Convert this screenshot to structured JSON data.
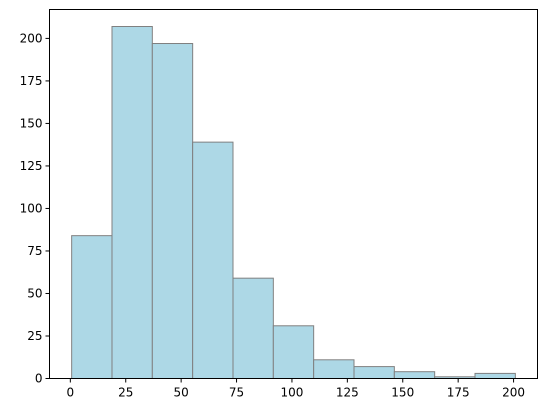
{
  "chart_data": {
    "type": "histogram",
    "title": "",
    "xlabel": "",
    "ylabel": "",
    "bins": [
      {
        "x0": 0.6,
        "x1": 18.8,
        "count": 84
      },
      {
        "x0": 18.8,
        "x1": 37.0,
        "count": 207
      },
      {
        "x0": 37.0,
        "x1": 55.2,
        "count": 197
      },
      {
        "x0": 55.2,
        "x1": 73.4,
        "count": 139
      },
      {
        "x0": 73.4,
        "x1": 91.6,
        "count": 59
      },
      {
        "x0": 91.6,
        "x1": 109.8,
        "count": 31
      },
      {
        "x0": 109.8,
        "x1": 128.0,
        "count": 11
      },
      {
        "x0": 128.0,
        "x1": 146.2,
        "count": 7
      },
      {
        "x0": 146.2,
        "x1": 164.4,
        "count": 4
      },
      {
        "x0": 164.4,
        "x1": 182.6,
        "count": 1
      },
      {
        "x0": 182.6,
        "x1": 200.8,
        "count": 3
      }
    ],
    "xlim": [
      -9.4,
      210.8
    ],
    "ylim": [
      0,
      217
    ],
    "xticks": [
      0,
      25,
      50,
      75,
      100,
      125,
      150,
      175,
      200
    ],
    "yticks": [
      0,
      25,
      50,
      75,
      100,
      125,
      150,
      175,
      200
    ],
    "grid": false,
    "colors": {
      "bar_fill": "#add8e6",
      "bar_edge": "#808080",
      "axes": "#000000"
    }
  }
}
